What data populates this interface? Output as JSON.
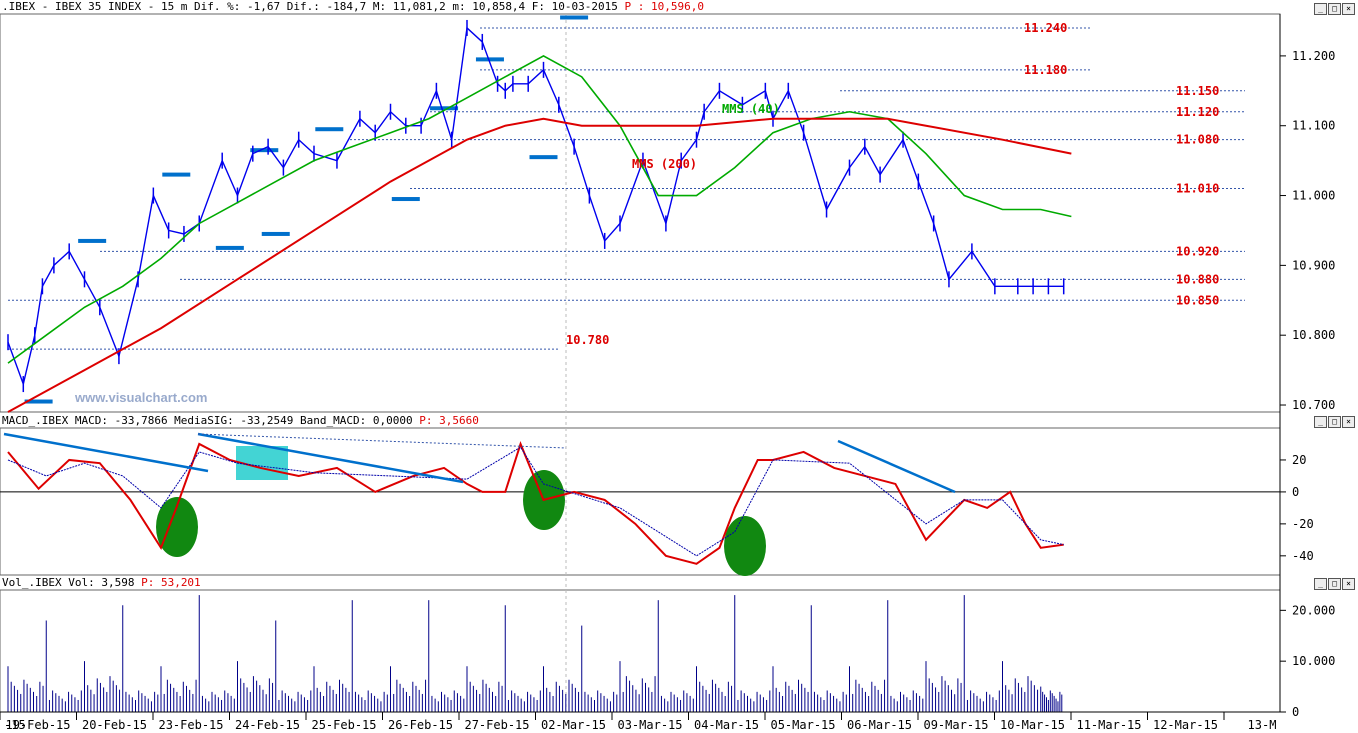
{
  "header": {
    "price_info": ".IBEX - IBEX 35 INDEX -  15 m Dif. %: -1,67 Dif.: -184,7 M: 11,081,2 m: 10,858,4 F: 10-03-2015",
    "price_last": "P : 10,596,0",
    "macd_info": "MACD_.IBEX MACD: -33,7866 MediaSIG: -33,2549 Band_MACD: 0,0000",
    "macd_last": "P: 3,5660",
    "vol_info": "Vol_.IBEX Vol: 3,598",
    "vol_last": "P: 53,201"
  },
  "watermark": "www.visualchart.com",
  "colors": {
    "price": "#0000ee",
    "mms40": "#00aa00",
    "mms200": "#dd0000",
    "macd": "#dd0000",
    "signal": "#0000aa",
    "level_text": "#dd0000",
    "marker": "#0070cc",
    "highlight": "#22cccc",
    "circle": "#118811",
    "volume": "#000088"
  },
  "chart_data": [
    {
      "type": "line",
      "title": "IBEX 35 INDEX 15 m",
      "x_ticks": [
        "19-Feb-15",
        "20-Feb-15",
        "23-Feb-15",
        "24-Feb-15",
        "25-Feb-15",
        "26-Feb-15",
        "27-Feb-15",
        "02-Mar-15",
        "03-Mar-15",
        "04-Mar-15",
        "05-Mar-15",
        "06-Mar-15",
        "09-Mar-15",
        "10-Mar-15",
        "11-Mar-15",
        "12-Mar-15",
        "13-M"
      ],
      "y_ticks": [
        "11.200",
        "11.100",
        "11.000",
        "10.900",
        "10.800",
        "10.700"
      ],
      "ylim": [
        10690,
        11260
      ],
      "day_index_domain": [
        0,
        14
      ],
      "series": [
        {
          "name": "price",
          "x": [
            0,
            0.2,
            0.35,
            0.45,
            0.6,
            0.8,
            1,
            1.2,
            1.45,
            1.7,
            1.9,
            2.1,
            2.3,
            2.5,
            2.8,
            3,
            3.2,
            3.4,
            3.6,
            3.8,
            4,
            4.3,
            4.6,
            4.8,
            5,
            5.2,
            5.4,
            5.6,
            5.8,
            6,
            6.2,
            6.4,
            6.5,
            6.6,
            6.8,
            7,
            7.2,
            7.4,
            7.6,
            7.8,
            8,
            8.3,
            8.6,
            8.8,
            9,
            9.1,
            9.3,
            9.6,
            9.9,
            10,
            10.2,
            10.4,
            10.7,
            11,
            11.2,
            11.4,
            11.7,
            11.9,
            12.1,
            12.3,
            12.6,
            12.9,
            13.2,
            13.4,
            13.6,
            13.8
          ],
          "y": [
            10790,
            10730,
            10800,
            10870,
            10900,
            10920,
            10880,
            10840,
            10770,
            10880,
            11000,
            10950,
            10945,
            10960,
            11050,
            11000,
            11060,
            11070,
            11040,
            11080,
            11060,
            11050,
            11110,
            11090,
            11120,
            11100,
            11100,
            11150,
            11080,
            11240,
            11220,
            11160,
            11150,
            11160,
            11160,
            11180,
            11130,
            11070,
            11000,
            10935,
            10960,
            11050,
            10960,
            11050,
            11080,
            11120,
            11150,
            11130,
            11150,
            11110,
            11150,
            11090,
            10980,
            11040,
            11070,
            11030,
            11080,
            11020,
            10960,
            10880,
            10920,
            10870,
            10870,
            10870,
            10870,
            10870
          ]
        },
        {
          "name": "MMS (40)",
          "x": [
            0,
            0.5,
            1,
            1.5,
            2,
            2.5,
            3,
            3.5,
            4,
            4.5,
            5,
            5.5,
            6,
            6.5,
            7,
            7.5,
            8,
            8.5,
            9,
            9.5,
            10,
            10.5,
            11,
            11.5,
            12,
            12.5,
            13,
            13.5,
            13.9
          ],
          "y": [
            10760,
            10800,
            10840,
            10870,
            10910,
            10960,
            10990,
            11020,
            11050,
            11070,
            11090,
            11110,
            11140,
            11170,
            11200,
            11170,
            11100,
            11000,
            11000,
            11040,
            11090,
            11110,
            11120,
            11110,
            11060,
            11000,
            10980,
            10980,
            10970
          ]
        },
        {
          "name": "MMS (200)",
          "x": [
            0,
            1,
            2,
            3,
            4,
            5,
            6,
            6.5,
            7,
            7.5,
            8,
            9,
            10,
            11,
            11.5,
            12,
            13,
            13.9
          ],
          "y": [
            10690,
            10750,
            10810,
            10880,
            10950,
            11020,
            11080,
            11100,
            11110,
            11100,
            11100,
            11100,
            11110,
            11110,
            11110,
            11100,
            11080,
            11060
          ]
        }
      ],
      "levels": [
        {
          "label": "11.240",
          "value": 11240
        },
        {
          "label": "11.180",
          "value": 11180
        },
        {
          "label": "11.150",
          "value": 11150
        },
        {
          "label": "11.120",
          "value": 11120
        },
        {
          "label": "11.080",
          "value": 11080
        },
        {
          "label": "11.010",
          "value": 11010
        },
        {
          "label": "10.920",
          "value": 10920
        },
        {
          "label": "10.880",
          "value": 10880
        },
        {
          "label": "10.850",
          "value": 10850
        },
        {
          "label": "10.780",
          "value": 10780
        }
      ],
      "annotations": [
        "MMS (40)",
        "MMS (200)"
      ]
    },
    {
      "type": "line",
      "title": "MACD",
      "y_ticks": [
        "20",
        "0",
        "-20",
        "-40"
      ],
      "ylim": [
        -52,
        40
      ],
      "series": [
        {
          "name": "MACD",
          "x": [
            0,
            0.4,
            0.8,
            1.2,
            1.6,
            2,
            2.2,
            2.5,
            2.9,
            3.3,
            3.8,
            4.3,
            4.8,
            5.3,
            5.7,
            6,
            6.2,
            6.5,
            6.7,
            7,
            7.4,
            7.8,
            8.2,
            8.6,
            9,
            9.3,
            9.5,
            9.8,
            10,
            10.4,
            10.8,
            11.2,
            11.6,
            12,
            12.2,
            12.5,
            12.8,
            13.1,
            13.3,
            13.5,
            13.8
          ],
          "y": [
            25,
            2,
            20,
            18,
            -5,
            -35,
            -10,
            30,
            20,
            15,
            10,
            15,
            0,
            10,
            15,
            5,
            0,
            0,
            30,
            -5,
            0,
            -5,
            -20,
            -40,
            -45,
            -35,
            -10,
            20,
            20,
            25,
            15,
            10,
            5,
            -30,
            -20,
            -5,
            -10,
            0,
            -20,
            -35,
            -33
          ]
        },
        {
          "name": "MediaSIG",
          "x": [
            0,
            0.5,
            1,
            1.5,
            2,
            2.5,
            3,
            4,
            5,
            6,
            6.7,
            7,
            8,
            9,
            9.5,
            10,
            11,
            12,
            12.5,
            13,
            13.5,
            13.8
          ],
          "y": [
            20,
            10,
            18,
            10,
            -10,
            25,
            18,
            12,
            10,
            8,
            28,
            5,
            -10,
            -40,
            -25,
            20,
            18,
            -20,
            -5,
            -5,
            -30,
            -33
          ]
        }
      ],
      "annotations": []
    },
    {
      "type": "bar",
      "title": "Vol",
      "y_ticks": [
        "20.000",
        "10.000",
        "0"
      ],
      "ylim": [
        0,
        24000
      ],
      "series": [
        {
          "name": "Vol",
          "x": [
            0,
            0.5,
            1,
            1.5,
            2,
            2.5,
            3,
            3.5,
            4,
            4.5,
            5,
            5.5,
            6,
            6.5,
            7,
            7.5,
            8,
            8.5,
            9,
            9.5,
            10,
            10.5,
            11,
            11.5,
            12,
            12.5,
            13,
            13.5,
            13.8
          ],
          "y": [
            9000,
            18000,
            10000,
            21000,
            9000,
            23000,
            10000,
            18000,
            9000,
            22000,
            9000,
            22000,
            9000,
            21000,
            9000,
            17000,
            10000,
            22000,
            9000,
            23000,
            9000,
            21000,
            9000,
            22000,
            10000,
            23000,
            10000,
            5000,
            3598
          ]
        }
      ]
    }
  ]
}
